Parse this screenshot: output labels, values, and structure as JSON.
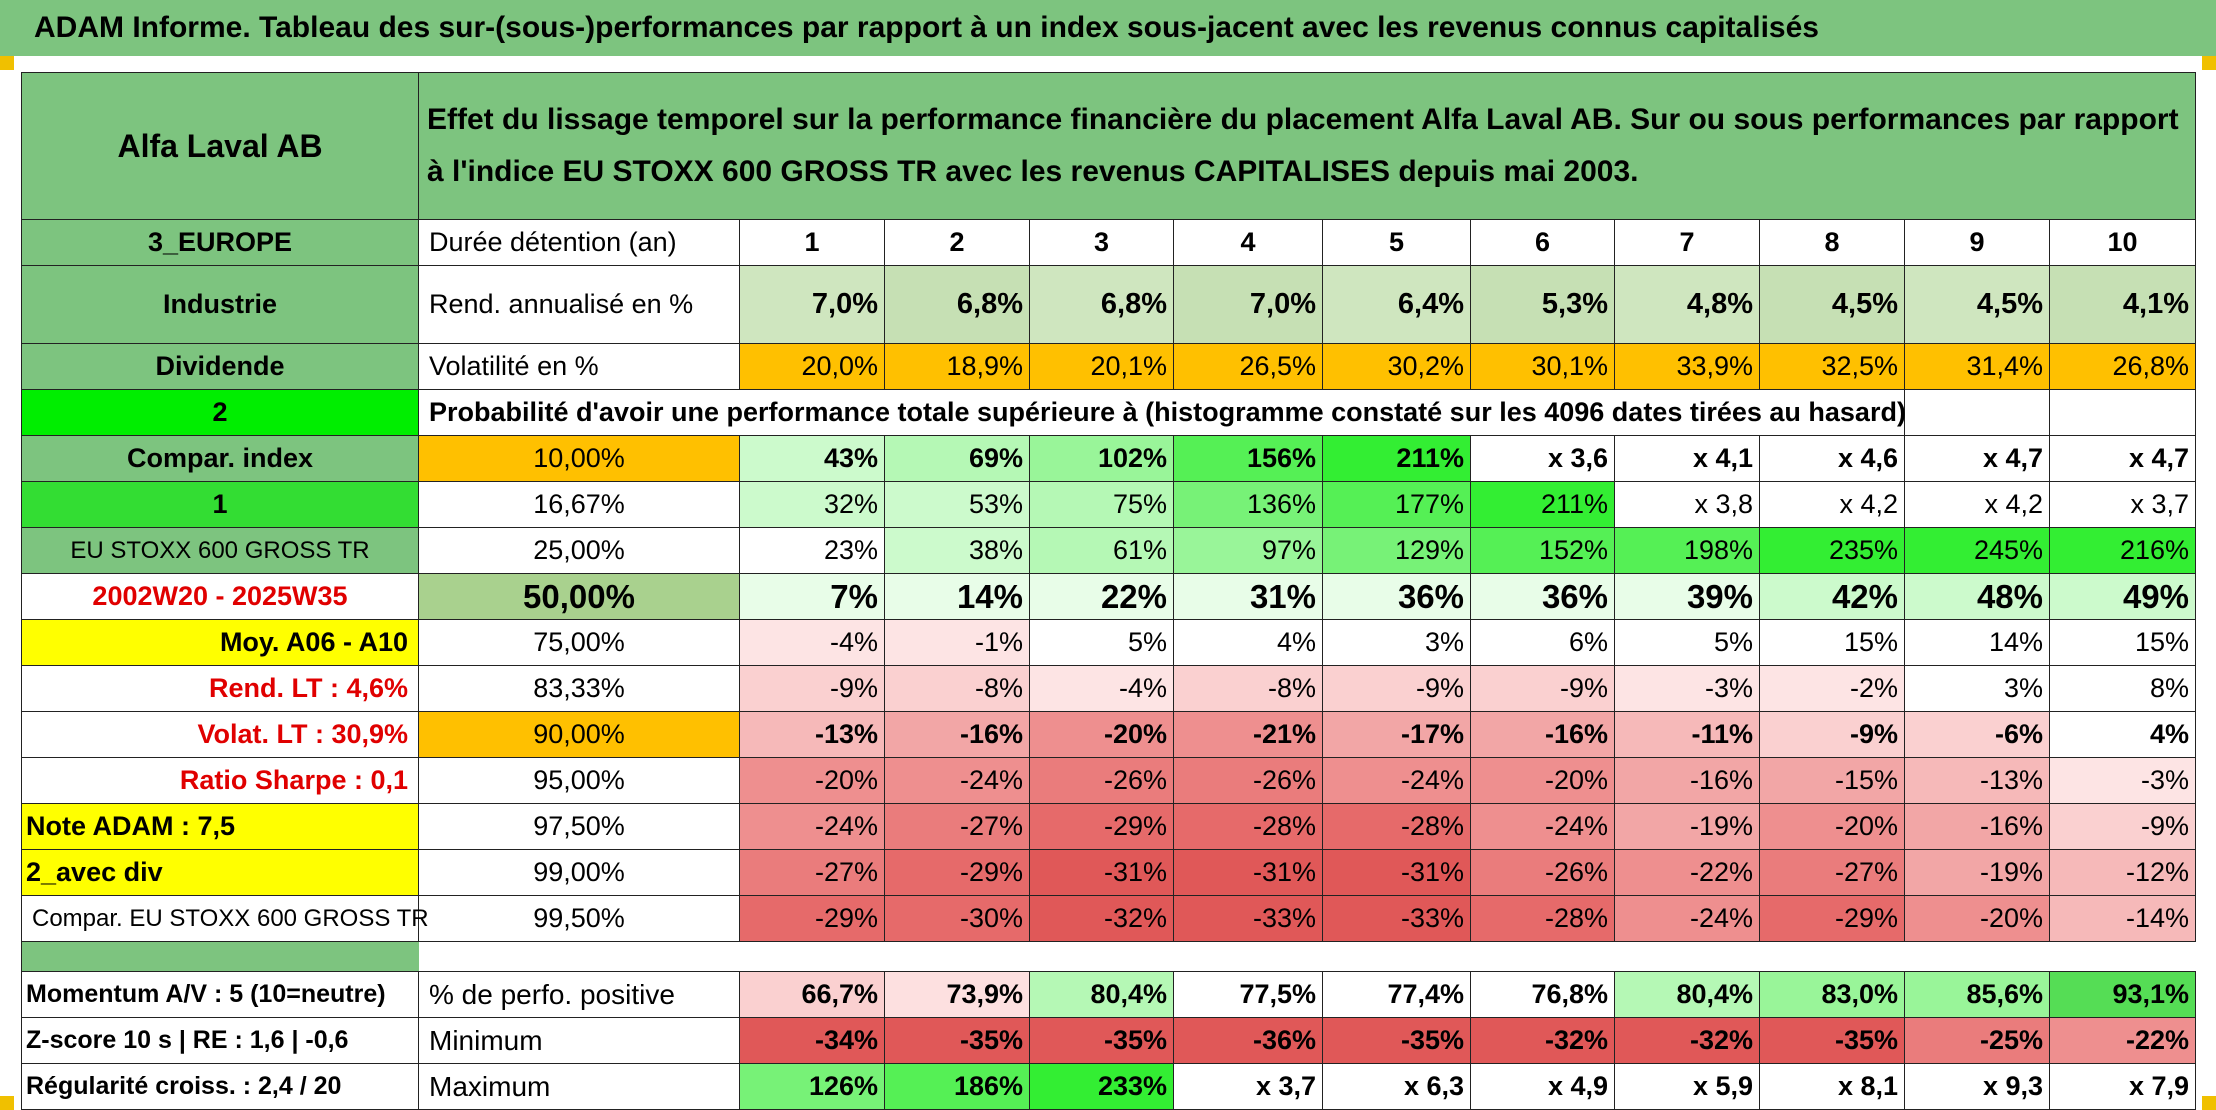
{
  "title": "ADAM Informe. Tableau des sur-(sous-)performances par rapport à un index sous-jacent avec les revenus connus capitalisés",
  "left_panel": {
    "company": "Alfa Laval AB",
    "region": "3_EUROPE",
    "sector": "Industrie",
    "dividend": "Dividende",
    "number_2": "2",
    "compar_index": "Compar. index",
    "number_1": "1",
    "index_name": "EU STOXX 600 GROSS TR",
    "period": "2002W20 - 2025W35",
    "moy": "Moy. A06 - A10",
    "rend_lt": "Rend. LT :   4,6%",
    "volat_lt": "Volat. LT :   30,9%",
    "sharpe": "Ratio Sharpe :   0,1",
    "note_adam": "Note ADAM : 7,5",
    "avec_div": "2_avec div",
    "compar_full": "Compar. EU STOXX 600 GROSS TR",
    "momentum": "Momentum A/V : 5 (10=neutre)",
    "zscore": "Z-score 10 s | RE : 1,6 | -0,6",
    "regularite": "Régularité croiss. : 2,4 / 20"
  },
  "description": "Effet du lissage temporel sur la performance financière du placement Alfa Laval AB. Sur ou sous performances par rapport à l'indice EU STOXX 600 GROSS TR avec les revenus CAPITALISES depuis mai 2003.",
  "header": {
    "duree_label": "Durée détention (an)",
    "years": [
      "1",
      "2",
      "3",
      "4",
      "5",
      "6",
      "7",
      "8",
      "9",
      "10"
    ]
  },
  "rendement": {
    "label": "Rend. annualisé en %",
    "values": [
      "7,0%",
      "6,8%",
      "6,8%",
      "7,0%",
      "6,4%",
      "5,3%",
      "4,8%",
      "4,5%",
      "4,5%",
      "4,1%"
    ]
  },
  "volatilite": {
    "label": "Volatilité en %",
    "values": [
      "20,0%",
      "18,9%",
      "20,1%",
      "26,5%",
      "30,2%",
      "30,1%",
      "33,9%",
      "32,5%",
      "31,4%",
      "26,8%"
    ]
  },
  "probabilite_label": "Probabilité d'avoir une performance totale supérieure à (histogramme constaté sur les 4096 dates tirées au hasard)",
  "percentile_rows": [
    {
      "pct": "10,00%",
      "values": [
        "43%",
        "69%",
        "102%",
        "156%",
        "211%",
        "x 3,6",
        "x 4,1",
        "x 4,6",
        "x 4,7",
        "x 4,7"
      ]
    },
    {
      "pct": "16,67%",
      "values": [
        "32%",
        "53%",
        "75%",
        "136%",
        "177%",
        "211%",
        "x 3,8",
        "x 4,2",
        "x 4,2",
        "x 3,7"
      ]
    },
    {
      "pct": "25,00%",
      "values": [
        "23%",
        "38%",
        "61%",
        "97%",
        "129%",
        "152%",
        "198%",
        "235%",
        "245%",
        "216%"
      ]
    },
    {
      "pct": "50,00%",
      "values": [
        "7%",
        "14%",
        "22%",
        "31%",
        "36%",
        "36%",
        "39%",
        "42%",
        "48%",
        "49%"
      ]
    },
    {
      "pct": "75,00%",
      "values": [
        "-4%",
        "-1%",
        "5%",
        "4%",
        "3%",
        "6%",
        "5%",
        "15%",
        "14%",
        "15%"
      ]
    },
    {
      "pct": "83,33%",
      "values": [
        "-9%",
        "-8%",
        "-4%",
        "-8%",
        "-9%",
        "-9%",
        "-3%",
        "-2%",
        "3%",
        "8%"
      ]
    },
    {
      "pct": "90,00%",
      "values": [
        "-13%",
        "-16%",
        "-20%",
        "-21%",
        "-17%",
        "-16%",
        "-11%",
        "-9%",
        "-6%",
        "4%"
      ]
    },
    {
      "pct": "95,00%",
      "values": [
        "-20%",
        "-24%",
        "-26%",
        "-26%",
        "-24%",
        "-20%",
        "-16%",
        "-15%",
        "-13%",
        "-3%"
      ]
    },
    {
      "pct": "97,50%",
      "values": [
        "-24%",
        "-27%",
        "-29%",
        "-28%",
        "-28%",
        "-24%",
        "-19%",
        "-20%",
        "-16%",
        "-9%"
      ]
    },
    {
      "pct": "99,00%",
      "values": [
        "-27%",
        "-29%",
        "-31%",
        "-31%",
        "-31%",
        "-26%",
        "-22%",
        "-27%",
        "-19%",
        "-12%"
      ]
    },
    {
      "pct": "99,50%",
      "values": [
        "-29%",
        "-30%",
        "-32%",
        "-33%",
        "-33%",
        "-28%",
        "-24%",
        "-29%",
        "-20%",
        "-14%"
      ]
    }
  ],
  "stats": [
    {
      "label": "% de perfo. positive",
      "values": [
        "66,7%",
        "73,9%",
        "80,4%",
        "77,5%",
        "77,4%",
        "76,8%",
        "80,4%",
        "83,0%",
        "85,6%",
        "93,1%"
      ]
    },
    {
      "label": "Minimum",
      "values": [
        "-34%",
        "-35%",
        "-35%",
        "-36%",
        "-35%",
        "-32%",
        "-32%",
        "-35%",
        "-25%",
        "-22%"
      ]
    },
    {
      "label": "Maximum",
      "values": [
        "126%",
        "186%",
        "233%",
        "x 3,7",
        "x 6,3",
        "x 4,9",
        "x 5,9",
        "x 8,1",
        "x 9,3",
        "x 7,9"
      ]
    }
  ],
  "colors": {
    "title_green": "#7dc47f",
    "yellow": "#ffff00",
    "orange": "#ffc000",
    "red_text": "#e00000"
  }
}
